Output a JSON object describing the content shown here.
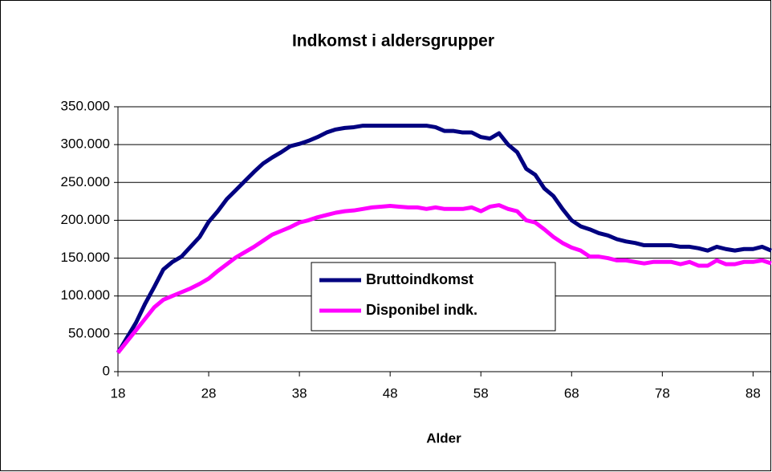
{
  "chart_data": {
    "type": "line",
    "title": "Indkomst i aldersgrupper",
    "x_label": "Alder",
    "x": [
      18,
      19,
      20,
      21,
      22,
      23,
      24,
      25,
      26,
      27,
      28,
      29,
      30,
      31,
      32,
      33,
      34,
      35,
      36,
      37,
      38,
      39,
      40,
      41,
      42,
      43,
      44,
      45,
      46,
      47,
      48,
      49,
      50,
      51,
      52,
      53,
      54,
      55,
      56,
      57,
      58,
      59,
      60,
      61,
      62,
      63,
      64,
      65,
      66,
      67,
      68,
      69,
      70,
      71,
      72,
      73,
      74,
      75,
      76,
      77,
      78,
      79,
      80,
      81,
      82,
      83,
      84,
      85,
      86,
      87,
      88,
      89,
      90
    ],
    "series": [
      {
        "name": "Bruttoindkomst",
        "color": "#000080",
        "values": [
          25000,
          45000,
          65000,
          90000,
          112000,
          135000,
          145000,
          152000,
          165000,
          178000,
          198000,
          212000,
          228000,
          240000,
          252000,
          264000,
          275000,
          283000,
          290000,
          298000,
          301000,
          305000,
          310000,
          316000,
          320000,
          322000,
          323000,
          325000,
          325000,
          325000,
          325000,
          325000,
          325000,
          325000,
          325000,
          323000,
          318000,
          318000,
          316000,
          316000,
          310000,
          308000,
          315000,
          300000,
          290000,
          268000,
          260000,
          242000,
          232000,
          215000,
          200000,
          192000,
          188000,
          183000,
          180000,
          175000,
          172000,
          170000,
          167000,
          167000,
          167000,
          167000,
          165000,
          165000,
          163000,
          160000,
          165000,
          162000,
          160000,
          162000,
          162000,
          165000,
          160000
        ]
      },
      {
        "name": "Disponibel indk.",
        "color": "#ff00ff",
        "values": [
          25000,
          40000,
          55000,
          70000,
          85000,
          95000,
          100000,
          105000,
          110000,
          116000,
          123000,
          133000,
          142000,
          151000,
          158000,
          165000,
          173000,
          181000,
          186000,
          191000,
          197000,
          200000,
          204000,
          207000,
          210000,
          212000,
          213000,
          215000,
          217000,
          218000,
          219000,
          218000,
          217000,
          217000,
          215000,
          217000,
          215000,
          215000,
          215000,
          217000,
          212000,
          218000,
          220000,
          215000,
          212000,
          200000,
          197000,
          188000,
          178000,
          170000,
          164000,
          160000,
          152000,
          152000,
          150000,
          147000,
          147000,
          145000,
          143000,
          145000,
          145000,
          145000,
          142000,
          145000,
          140000,
          140000,
          147000,
          142000,
          142000,
          145000,
          145000,
          147000,
          143000
        ]
      }
    ],
    "xlim": [
      18,
      90
    ],
    "xticks": [
      18,
      28,
      38,
      48,
      58,
      68,
      78,
      88
    ],
    "ylim": [
      0,
      350000
    ],
    "yticks": [
      0,
      {
        "value": 50000,
        "label": "50.000"
      },
      {
        "value": 100000,
        "label": "100.000"
      },
      {
        "value": 150000,
        "label": "150.000"
      },
      {
        "value": 200000,
        "label": "200.000"
      },
      {
        "value": 250000,
        "label": "250.000"
      },
      {
        "value": 300000,
        "label": "300.000"
      },
      {
        "value": 350000,
        "label": "350.000"
      }
    ],
    "grid": true,
    "legend_position": "center"
  }
}
